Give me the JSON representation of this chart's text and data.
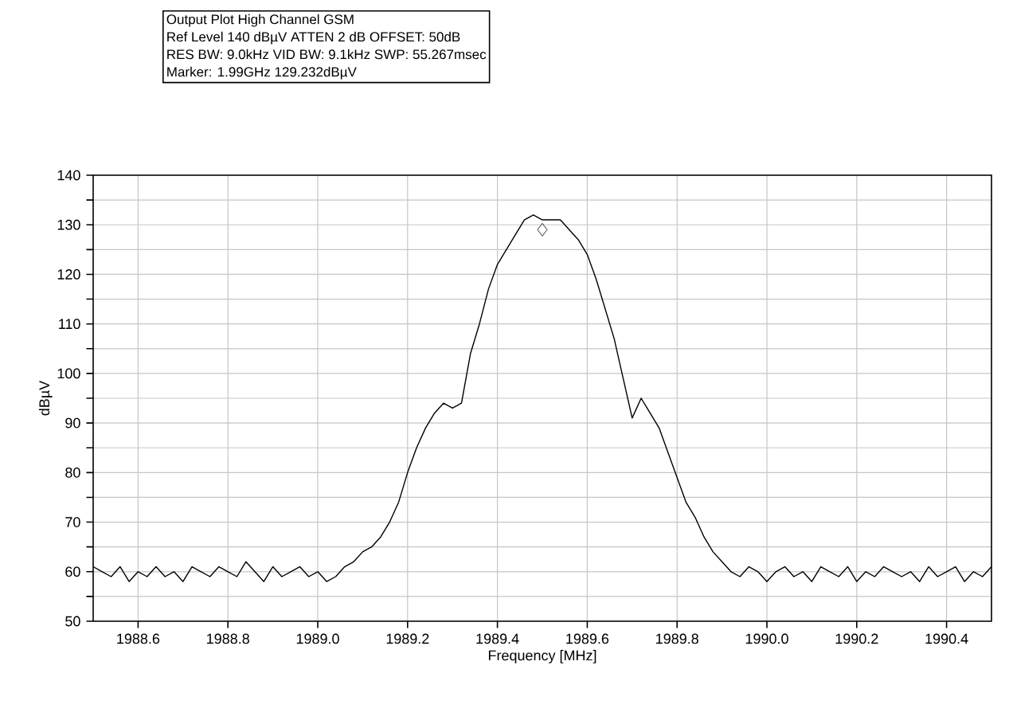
{
  "chart_data": {
    "type": "line",
    "title": "Output Plot High Channel GSM",
    "annotations": [
      "Ref Level 140 dBµV    ATTEN 2 dB    OFFSET: 50dB",
      "RES BW: 9.0kHz  VID BW: 9.1kHz  SWP: 55.267msec",
      "Marker: 1.99GHz  129.232dBµV"
    ],
    "xlabel": "Frequency [MHz]",
    "ylabel": "dBµV",
    "x": [
      1988.5,
      1988.52,
      1988.54,
      1988.56,
      1988.58,
      1988.6,
      1988.62,
      1988.64,
      1988.66,
      1988.68,
      1988.7,
      1988.72,
      1988.74,
      1988.76,
      1988.78,
      1988.8,
      1988.82,
      1988.84,
      1988.86,
      1988.88,
      1988.9,
      1988.92,
      1988.94,
      1988.96,
      1988.98,
      1989.0,
      1989.02,
      1989.04,
      1989.06,
      1989.08,
      1989.1,
      1989.12,
      1989.14,
      1989.16,
      1989.18,
      1989.2,
      1989.22,
      1989.24,
      1989.26,
      1989.28,
      1989.3,
      1989.32,
      1989.34,
      1989.36,
      1989.38,
      1989.4,
      1989.42,
      1989.44,
      1989.46,
      1989.48,
      1989.5,
      1989.52,
      1989.54,
      1989.56,
      1989.58,
      1989.6,
      1989.62,
      1989.64,
      1989.66,
      1989.68,
      1989.7,
      1989.72,
      1989.74,
      1989.76,
      1989.78,
      1989.8,
      1989.82,
      1989.84,
      1989.86,
      1989.88,
      1989.9,
      1989.92,
      1989.94,
      1989.96,
      1989.98,
      1990.0,
      1990.02,
      1990.04,
      1990.06,
      1990.08,
      1990.1,
      1990.12,
      1990.14,
      1990.16,
      1990.18,
      1990.2,
      1990.22,
      1990.24,
      1990.26,
      1990.28,
      1990.3,
      1990.32,
      1990.34,
      1990.36,
      1990.38,
      1990.4,
      1990.42,
      1990.44,
      1990.46,
      1990.48,
      1990.5
    ],
    "values": [
      61,
      60,
      59,
      61,
      58,
      60,
      59,
      61,
      59,
      60,
      58,
      61,
      60,
      59,
      61,
      60,
      59,
      62,
      60,
      58,
      61,
      59,
      60,
      61,
      59,
      60,
      58,
      59,
      61,
      62,
      64,
      65,
      67,
      70,
      74,
      80,
      85,
      89,
      92,
      94,
      93,
      94,
      104,
      110,
      117,
      122,
      125,
      128,
      131,
      132,
      131,
      131,
      131,
      129,
      127,
      124,
      119,
      113,
      107,
      99,
      91,
      95,
      92,
      89,
      84,
      79,
      74,
      71,
      67,
      64,
      62,
      60,
      59,
      61,
      60,
      58,
      60,
      61,
      59,
      60,
      58,
      61,
      60,
      59,
      61,
      58,
      60,
      59,
      61,
      60,
      59,
      60,
      58,
      61,
      59,
      60,
      61,
      58,
      60,
      59,
      61
    ],
    "color": "#000000",
    "line_style": "solid",
    "grid": true,
    "series": [
      {
        "type": "scatter",
        "x": [
          1989.5
        ],
        "values": [
          129
        ],
        "marker": "diamond",
        "color": "#000000"
      }
    ],
    "xlim": [
      1988.5,
      1990.5
    ],
    "xticks": [
      1988.6,
      1988.8,
      {
        "value": 1989.0,
        "label": "1989.0"
      },
      1989.2,
      1989.4,
      1989.6,
      1989.8,
      {
        "value": 1990.0,
        "label": "1990.0"
      },
      1990.2,
      1990.4
    ],
    "ylim": [
      50,
      140
    ],
    "yticks": [
      50,
      {
        "value": 55,
        "label": null
      },
      60,
      {
        "value": 65,
        "label": null
      },
      70,
      {
        "value": 75,
        "label": null
      },
      80,
      {
        "value": 85,
        "label": null
      },
      90,
      {
        "value": 95,
        "label": null
      },
      100,
      {
        "value": 105,
        "label": null
      },
      110,
      {
        "value": 115,
        "label": null
      },
      120,
      {
        "value": 125,
        "label": null
      },
      130,
      {
        "value": 135,
        "label": null
      },
      140
    ]
  }
}
